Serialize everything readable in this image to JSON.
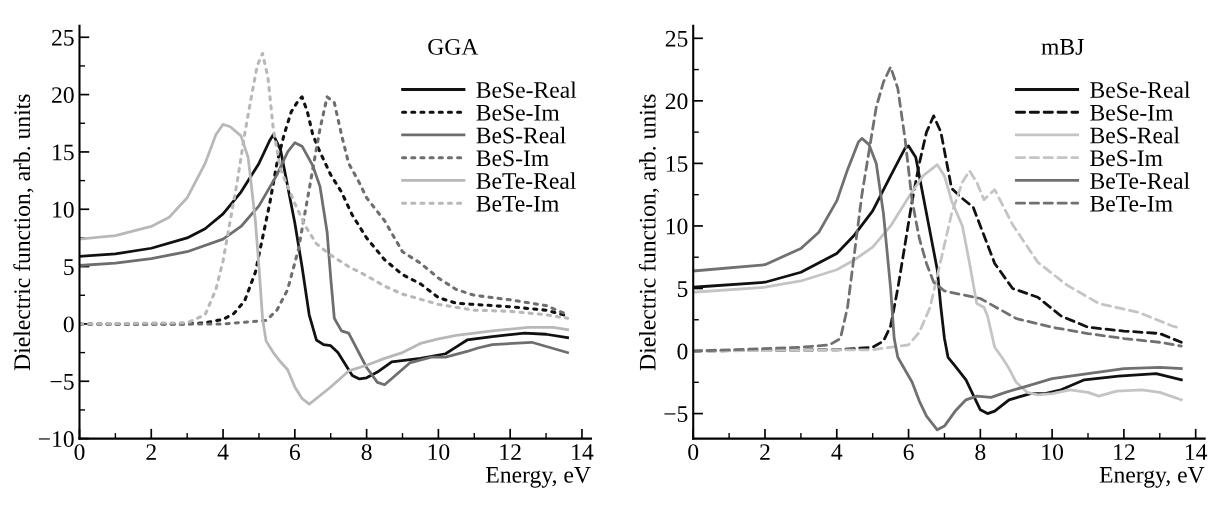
{
  "chart_data": [
    {
      "type": "line",
      "title": "GGA",
      "xlabel": "Energy, eV",
      "ylabel": "Dielectric function, arb. units",
      "legend": "top right",
      "grid": false,
      "xlim": [
        0,
        14.25
      ],
      "ylim": [
        -10,
        26
      ],
      "xticks": [
        0,
        {
          "value": 1,
          "label": null
        },
        2,
        {
          "value": 3,
          "label": null
        },
        4,
        {
          "value": 5,
          "label": null
        },
        6,
        {
          "value": 7,
          "label": null
        },
        8,
        {
          "value": 9,
          "label": null
        },
        10,
        {
          "value": 11,
          "label": null
        },
        12,
        {
          "value": 13,
          "label": null
        },
        14
      ],
      "yticks": [
        {
          "value": -10,
          "label": "−10"
        },
        {
          "value": -7.5,
          "label": null
        },
        {
          "value": -5,
          "label": "−5"
        },
        {
          "value": -2.5,
          "label": null
        },
        0,
        {
          "value": 2.5,
          "label": null
        },
        5,
        {
          "value": 7.5,
          "label": null
        },
        10,
        {
          "value": 12.5,
          "label": null
        },
        15,
        {
          "value": 17.5,
          "label": null
        },
        20,
        {
          "value": 22.5,
          "label": null
        },
        25
      ],
      "series": [
        {
          "name": "BeSe-Real",
          "color": "#111111",
          "line_style": "solid",
          "x": [
            0,
            1,
            2,
            3,
            3.5,
            4,
            4.5,
            5,
            5.3,
            5.4,
            5.6,
            5.8,
            6.0,
            6.2,
            6.4,
            6.6,
            6.8,
            7.0,
            7.2,
            7.4,
            7.6,
            7.8,
            8.0,
            8.3,
            8.7,
            9.5,
            10.2,
            10.5,
            10.8,
            11.5,
            12.4,
            13.0,
            13.6
          ],
          "values": [
            5.9,
            6.1,
            6.6,
            7.5,
            8.3,
            9.6,
            11.5,
            14.0,
            16.0,
            16.5,
            15.2,
            12.0,
            8.8,
            5.0,
            0.8,
            -1.4,
            -1.8,
            -1.9,
            -2.5,
            -3.5,
            -4.5,
            -4.8,
            -4.7,
            -4.2,
            -3.3,
            -3.0,
            -2.6,
            -2.0,
            -1.4,
            -1.1,
            -0.8,
            -0.9,
            -1.2
          ]
        },
        {
          "name": "BeSe-Im",
          "color": "#111111",
          "line_style": "dotted",
          "x": [
            0,
            3,
            3.5,
            4.0,
            4.3,
            4.6,
            4.9,
            5.1,
            5.3,
            5.5,
            5.7,
            5.9,
            6.1,
            6.2,
            6.35,
            6.5,
            6.7,
            7.0,
            7.3,
            7.6,
            8.0,
            8.5,
            9.0,
            9.5,
            10.0,
            10.5,
            11,
            12,
            13,
            13.6
          ],
          "values": [
            0,
            0,
            0.1,
            0.4,
            0.9,
            2.0,
            4.5,
            7.5,
            10.5,
            14.0,
            16.5,
            18.5,
            19.5,
            19.8,
            18.5,
            16.5,
            15.0,
            13.0,
            11.5,
            9.5,
            7.5,
            5.6,
            4.3,
            3.5,
            2.3,
            1.8,
            1.7,
            1.5,
            1.2,
            0.7
          ]
        },
        {
          "name": "BeS-Real",
          "color": "#6e6e6e",
          "line_style": "solid",
          "x": [
            0,
            1,
            2,
            3,
            4,
            4.5,
            5,
            5.5,
            5.8,
            6.0,
            6.2,
            6.5,
            6.7,
            6.9,
            7.0,
            7.1,
            7.3,
            7.5,
            7.7,
            8.0,
            8.3,
            8.5,
            8.8,
            9.2,
            9.8,
            10.2,
            10.8,
            11.1,
            11.5,
            12.6,
            13.6
          ],
          "values": [
            5.1,
            5.3,
            5.7,
            6.3,
            7.4,
            8.5,
            10.3,
            13.0,
            15.0,
            15.8,
            15.5,
            13.8,
            12.0,
            8.0,
            4.0,
            0.5,
            -0.6,
            -0.8,
            -2.0,
            -3.8,
            -5.1,
            -5.3,
            -4.5,
            -3.4,
            -2.9,
            -2.9,
            -2.4,
            -2.1,
            -1.8,
            -1.6,
            -2.5
          ]
        },
        {
          "name": "BeS-Im",
          "color": "#6e6e6e",
          "line_style": "dotted",
          "x": [
            0,
            4,
            5.2,
            5.5,
            5.8,
            6.1,
            6.3,
            6.5,
            6.7,
            6.9,
            7.1,
            7.3,
            7.5,
            7.8,
            8.0,
            8.5,
            9.0,
            9.5,
            10,
            10.5,
            11,
            12,
            13,
            13.6
          ],
          "values": [
            0,
            0,
            0.3,
            1.2,
            3.0,
            6.5,
            10.0,
            13.5,
            17.0,
            19.8,
            19.3,
            16.5,
            14.0,
            12.3,
            11.0,
            9.0,
            6.3,
            5.3,
            4.0,
            3.0,
            2.5,
            2.1,
            1.6,
            0.8
          ]
        },
        {
          "name": "BeTe-Real",
          "color": "#b8b8b8",
          "line_style": "solid",
          "x": [
            0,
            1,
            2,
            2.5,
            3,
            3.5,
            3.8,
            4.0,
            4.2,
            4.5,
            4.7,
            4.9,
            5.0,
            5.1,
            5.2,
            5.4,
            5.6,
            5.8,
            6.0,
            6.2,
            6.4,
            6.6,
            7.0,
            7.5,
            8.0,
            8.5,
            9.0,
            9.5,
            10,
            10.5,
            11.5,
            12.5,
            13.2,
            13.6
          ],
          "values": [
            7.4,
            7.7,
            8.5,
            9.3,
            11.0,
            14.0,
            16.5,
            17.4,
            17.2,
            16.4,
            14.5,
            9.0,
            5.0,
            0.5,
            -1.5,
            -2.5,
            -3.3,
            -4.0,
            -5.5,
            -6.5,
            -7.0,
            -6.5,
            -5.5,
            -4.1,
            -3.6,
            -3.0,
            -2.5,
            -1.7,
            -1.3,
            -1.0,
            -0.6,
            -0.3,
            -0.3,
            -0.5
          ]
        },
        {
          "name": "BeTe-Im",
          "color": "#b8b8b8",
          "line_style": "dotted",
          "x": [
            0,
            3.0,
            3.5,
            3.8,
            4.0,
            4.2,
            4.4,
            4.6,
            4.8,
            4.95,
            5.1,
            5.25,
            5.4,
            5.6,
            5.8,
            6.0,
            6.3,
            6.6,
            7.0,
            7.5,
            8.0,
            8.5,
            9.0,
            10,
            11,
            12,
            13,
            13.6
          ],
          "values": [
            0,
            0.1,
            0.8,
            3.0,
            5.5,
            9.0,
            12.5,
            16.5,
            20.0,
            22.5,
            23.6,
            21.5,
            17.0,
            13.5,
            12.0,
            10.5,
            8.5,
            7.0,
            6.0,
            5.0,
            4.2,
            3.3,
            2.6,
            1.7,
            1.2,
            1.1,
            0.8,
            0.5
          ]
        }
      ]
    },
    {
      "type": "line",
      "title": "mBJ",
      "xlabel": "Energy, eV",
      "ylabel": "Dielectric function, arb. units",
      "legend": "top right",
      "grid": false,
      "xlim": [
        0,
        14.25
      ],
      "ylim": [
        -7,
        26
      ],
      "xticks": [
        0,
        {
          "value": 1,
          "label": null
        },
        2,
        {
          "value": 3,
          "label": null
        },
        4,
        {
          "value": 5,
          "label": null
        },
        6,
        {
          "value": 7,
          "label": null
        },
        8,
        {
          "value": 9,
          "label": null
        },
        10,
        {
          "value": 11,
          "label": null
        },
        12,
        {
          "value": 13,
          "label": null
        },
        14
      ],
      "yticks": [
        {
          "value": -5,
          "label": "−5"
        },
        {
          "value": -2.5,
          "label": null
        },
        0,
        {
          "value": 2.5,
          "label": null
        },
        5,
        {
          "value": 7.5,
          "label": null
        },
        10,
        {
          "value": 12.5,
          "label": null
        },
        15,
        {
          "value": 17.5,
          "label": null
        },
        20,
        {
          "value": 22.5,
          "label": null
        },
        25
      ],
      "series": [
        {
          "name": "BeSe-Real",
          "color": "#111111",
          "line_style": "solid",
          "x": [
            0,
            2,
            3,
            4,
            4.5,
            5,
            5.5,
            5.9,
            6.0,
            6.2,
            6.4,
            6.6,
            6.8,
            6.9,
            7.0,
            7.1,
            7.3,
            7.6,
            7.8,
            8.0,
            8.2,
            8.4,
            8.8,
            9.4,
            9.8,
            10.25,
            10.9,
            11.85,
            12.9,
            13.6
          ],
          "values": [
            5.1,
            5.5,
            6.3,
            7.8,
            9.3,
            11.2,
            14.0,
            16.2,
            16.4,
            15.5,
            12.5,
            9.5,
            6.5,
            3.5,
            1.0,
            -0.5,
            -1.2,
            -2.3,
            -3.5,
            -4.7,
            -5.0,
            -4.8,
            -3.9,
            -3.4,
            -3.4,
            -3.1,
            -2.3,
            -2.0,
            -1.8,
            -2.3
          ]
        },
        {
          "name": "BeSe-Im",
          "color": "#111111",
          "line_style": "dashed",
          "x": [
            0,
            4,
            5,
            5.3,
            5.5,
            5.7,
            5.9,
            6.1,
            6.3,
            6.5,
            6.7,
            6.9,
            7.1,
            7.2,
            7.5,
            7.8,
            8.0,
            8.4,
            8.9,
            9.6,
            10.25,
            11,
            12,
            13,
            13.6
          ],
          "values": [
            0,
            0.1,
            0.3,
            0.8,
            2.0,
            5.0,
            8.5,
            12.0,
            15.0,
            17.5,
            18.8,
            17.5,
            14.5,
            13.0,
            12.2,
            11.5,
            10.0,
            7.0,
            5.0,
            4.3,
            2.8,
            1.9,
            1.6,
            1.4,
            0.7
          ]
        },
        {
          "name": "BeS-Real",
          "color": "#c4c4c4",
          "line_style": "solid",
          "x": [
            0,
            2,
            3,
            4,
            4.5,
            5,
            5.5,
            6.0,
            6.4,
            6.8,
            7.0,
            7.2,
            7.5,
            7.7,
            7.9,
            8.1,
            8.2,
            8.4,
            8.6,
            8.8,
            9.0,
            9.3,
            9.6,
            10,
            10.5,
            11.0,
            11.3,
            11.8,
            12.5,
            13.0,
            13.6
          ],
          "values": [
            4.7,
            5.1,
            5.6,
            6.5,
            7.3,
            8.3,
            10.0,
            12.3,
            14.0,
            14.9,
            14.0,
            12.0,
            10.0,
            7.0,
            3.8,
            3.5,
            2.8,
            0.3,
            -0.5,
            -1.4,
            -2.5,
            -3.3,
            -3.5,
            -3.4,
            -3.1,
            -3.3,
            -3.6,
            -3.2,
            -3.1,
            -3.3,
            -3.9
          ]
        },
        {
          "name": "BeS-Im",
          "color": "#c4c4c4",
          "line_style": "dashed",
          "x": [
            0,
            5,
            6.0,
            6.3,
            6.6,
            6.8,
            7.0,
            7.2,
            7.5,
            7.7,
            7.9,
            8.1,
            8.4,
            8.9,
            9.6,
            10.4,
            11.3,
            12.4,
            13.35,
            13.6
          ],
          "values": [
            0,
            0.1,
            0.5,
            1.5,
            3.5,
            6.0,
            8.5,
            11.0,
            13.5,
            14.4,
            13.5,
            12.1,
            12.9,
            10.1,
            7.1,
            5.3,
            3.8,
            3.1,
            2.0,
            1.8
          ]
        },
        {
          "name": "BeTe-Real",
          "color": "#707070",
          "line_style": "solid",
          "x": [
            0,
            2,
            3,
            3.5,
            4,
            4.3,
            4.6,
            4.7,
            4.9,
            5.1,
            5.3,
            5.5,
            5.6,
            5.7,
            5.9,
            6.1,
            6.3,
            6.5,
            6.8,
            7.0,
            7.3,
            7.6,
            7.9,
            8.3,
            8.7,
            9.3,
            10,
            11,
            12,
            13,
            13.6
          ],
          "values": [
            6.4,
            6.9,
            8.2,
            9.5,
            12.0,
            14.5,
            16.7,
            17.0,
            16.5,
            15.0,
            11.0,
            5.0,
            1.0,
            -0.5,
            -1.5,
            -2.5,
            -4.0,
            -5.2,
            -6.3,
            -6.0,
            -4.8,
            -3.9,
            -3.6,
            -3.7,
            -3.3,
            -2.8,
            -2.2,
            -1.8,
            -1.4,
            -1.3,
            -1.4
          ]
        },
        {
          "name": "BeTe-Im",
          "color": "#707070",
          "line_style": "dashed",
          "x": [
            0,
            3,
            3.8,
            4.1,
            4.3,
            4.5,
            4.7,
            4.9,
            5.1,
            5.3,
            5.5,
            5.7,
            5.9,
            6.1,
            6.3,
            6.5,
            6.7,
            7.0,
            7.5,
            8.0,
            8.5,
            9.0,
            10,
            11,
            12,
            13,
            13.6
          ],
          "values": [
            0,
            0.3,
            0.5,
            1.0,
            3.5,
            8.0,
            12.5,
            16.0,
            19.5,
            21.5,
            22.7,
            21.0,
            17.0,
            12.0,
            9.0,
            7.0,
            5.5,
            4.8,
            4.5,
            4.2,
            3.4,
            2.6,
            1.9,
            1.4,
            1.0,
            0.7,
            0.4
          ]
        }
      ]
    }
  ]
}
